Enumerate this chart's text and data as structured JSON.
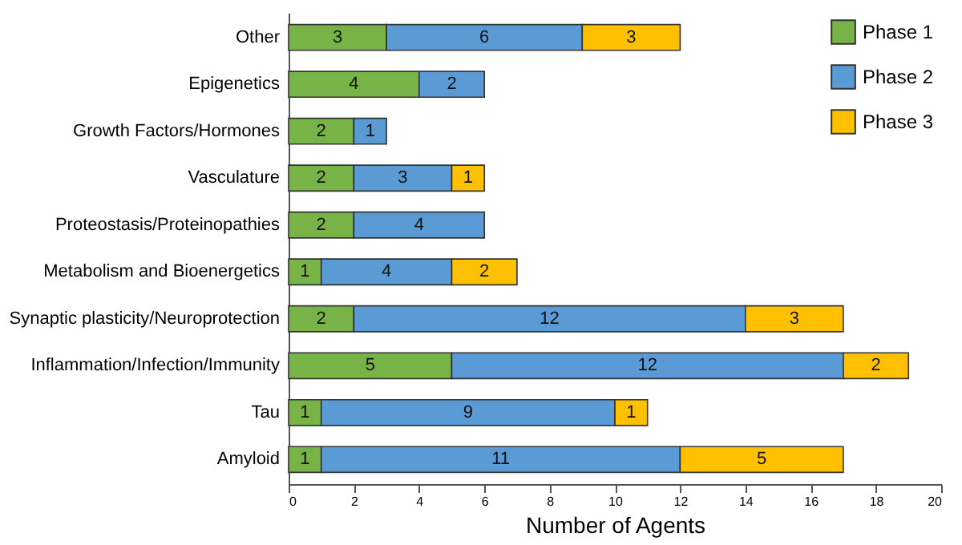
{
  "chart_data": {
    "type": "bar",
    "orientation": "horizontal",
    "stacked": true,
    "xlabel": "Number of Agents",
    "categories": [
      "Other",
      "Epigenetics",
      "Growth Factors/Hormones",
      "Vasculature",
      "Proteostasis/Proteinopathies",
      "Metabolism and Bioenergetics",
      "Synaptic plasticity/Neuroprotection",
      "Inflammation/Infection/Immunity",
      "Tau",
      "Amyloid"
    ],
    "series": [
      {
        "name": "Phase 1",
        "color": "#77b347",
        "values": [
          3,
          4,
          2,
          2,
          2,
          1,
          2,
          5,
          1,
          1
        ]
      },
      {
        "name": "Phase 2",
        "color": "#5b9bd5",
        "values": [
          6,
          2,
          1,
          3,
          4,
          4,
          12,
          12,
          9,
          11
        ]
      },
      {
        "name": "Phase 3",
        "color": "#ffc000",
        "values": [
          3,
          null,
          null,
          1,
          null,
          2,
          3,
          2,
          1,
          5
        ]
      }
    ],
    "xlim": [
      0,
      20
    ],
    "xticks": [
      0,
      2,
      4,
      6,
      8,
      10,
      12,
      14,
      16,
      18,
      20
    ],
    "data_labels": true,
    "legend": "top right",
    "grid": false
  }
}
